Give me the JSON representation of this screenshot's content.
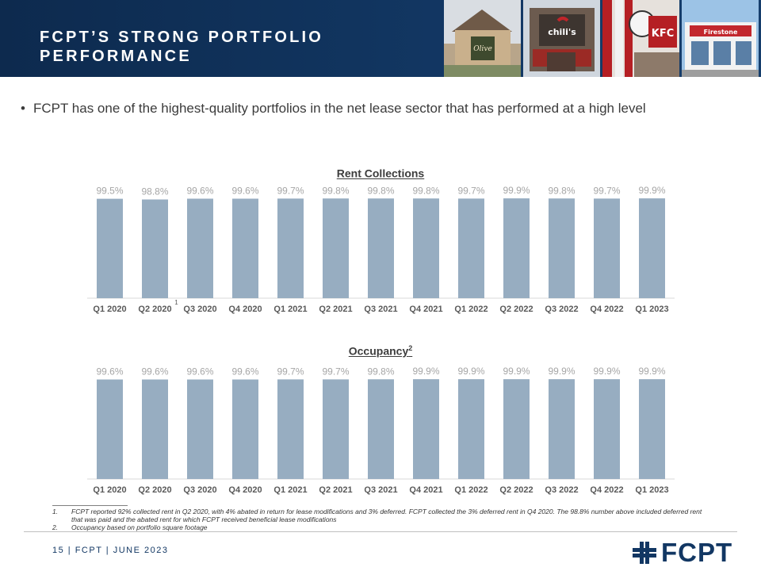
{
  "header": {
    "title_line1": "FCPT’S STRONG PORTFOLIO",
    "title_line2": "PERFORMANCE",
    "photos": [
      "olive-garden-photo",
      "chilis-photo",
      "kfc-photo",
      "firestone-photo"
    ]
  },
  "bullet": {
    "text": "FCPT has one of the highest-quality portfolios in the net lease sector that has performed at a high level"
  },
  "colors": {
    "header_bg": "#123763",
    "bar": "#97adc1",
    "label": "#a6a6a6",
    "axis_label": "#595959",
    "brand": "#123763"
  },
  "chart_data": [
    {
      "type": "bar",
      "title": "Rent Collections",
      "title_superscript": "",
      "categories": [
        "Q1 2020",
        "Q2 2020",
        "Q3 2020",
        "Q4 2020",
        "Q1 2021",
        "Q2 2021",
        "Q3 2021",
        "Q4 2021",
        "Q1 2022",
        "Q2 2022",
        "Q3 2022",
        "Q4 2022",
        "Q1 2023"
      ],
      "category_superscripts": [
        "",
        "1",
        "",
        "",
        "",
        "",
        "",
        "",
        "",
        "",
        "",
        "",
        ""
      ],
      "values": [
        99.5,
        98.8,
        99.6,
        99.6,
        99.7,
        99.8,
        99.8,
        99.8,
        99.7,
        99.9,
        99.8,
        99.7,
        99.9
      ],
      "data_labels": [
        "99.5%",
        "98.8%",
        "99.6%",
        "99.6%",
        "99.7%",
        "99.8%",
        "99.8%",
        "99.8%",
        "99.7%",
        "99.9%",
        "99.8%",
        "99.7%",
        "99.9%"
      ],
      "ylim": [
        0,
        100
      ],
      "grid": false
    },
    {
      "type": "bar",
      "title": "Occupancy",
      "title_superscript": "2",
      "categories": [
        "Q1 2020",
        "Q2 2020",
        "Q3 2020",
        "Q4 2020",
        "Q1 2021",
        "Q2 2021",
        "Q3 2021",
        "Q4 2021",
        "Q1 2022",
        "Q2 2022",
        "Q3 2022",
        "Q4 2022",
        "Q1 2023"
      ],
      "category_superscripts": [
        "",
        "",
        "",
        "",
        "",
        "",
        "",
        "",
        "",
        "",
        "",
        "",
        ""
      ],
      "values": [
        99.6,
        99.6,
        99.6,
        99.6,
        99.7,
        99.7,
        99.8,
        99.9,
        99.9,
        99.9,
        99.9,
        99.9,
        99.9
      ],
      "data_labels": [
        "99.6%",
        "99.6%",
        "99.6%",
        "99.6%",
        "99.7%",
        "99.7%",
        "99.8%",
        "99.9%",
        "99.9%",
        "99.9%",
        "99.9%",
        "99.9%",
        "99.9%"
      ],
      "ylim": [
        0,
        100
      ],
      "grid": false
    }
  ],
  "footnotes": [
    {
      "num": "1.",
      "text": "FCPT reported 92% collected rent in Q2 2020, with 4% abated in return for lease modifications and 3% deferred. FCPT collected the 3% deferred rent in Q4 2020. The 98.8% number above included deferred rent that was paid and the abated rent for which FCPT received beneficial lease modifications"
    },
    {
      "num": "2.",
      "text": "Occupancy based on portfolio square footage"
    }
  ],
  "footer": {
    "text": "15 | FCPT | JUNE 2023",
    "logo_text": "FCPT"
  }
}
